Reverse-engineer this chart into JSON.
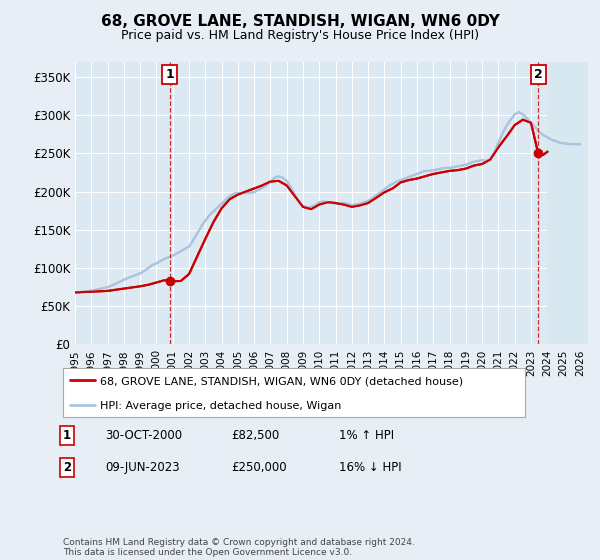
{
  "title": "68, GROVE LANE, STANDISH, WIGAN, WN6 0DY",
  "subtitle": "Price paid vs. HM Land Registry's House Price Index (HPI)",
  "ylim": [
    0,
    370000
  ],
  "xlim_start": 1995.0,
  "xlim_end": 2026.0,
  "fig_bg_color": "#e8eef5",
  "plot_bg_color": "#dce8f2",
  "grid_color": "#ffffff",
  "legend_label_red": "68, GROVE LANE, STANDISH, WIGAN, WN6 0DY (detached house)",
  "legend_label_blue": "HPI: Average price, detached house, Wigan",
  "point1_date": "30-OCT-2000",
  "point1_price": "£82,500",
  "point1_hpi": "1% ↑ HPI",
  "point1_x": 2000.83,
  "point1_y": 82500,
  "point2_date": "09-JUN-2023",
  "point2_price": "£250,000",
  "point2_hpi": "16% ↓ HPI",
  "point2_x": 2023.44,
  "point2_y": 250000,
  "footer": "Contains HM Land Registry data © Crown copyright and database right 2024.\nThis data is licensed under the Open Government Licence v3.0.",
  "hpi_color": "#aac4e0",
  "price_color": "#cc0000",
  "point_color": "#cc0000",
  "hpi_data_x": [
    1995.0,
    1995.25,
    1995.5,
    1995.75,
    1996.0,
    1996.25,
    1996.5,
    1996.75,
    1997.0,
    1997.25,
    1997.5,
    1997.75,
    1998.0,
    1998.25,
    1998.5,
    1998.75,
    1999.0,
    1999.25,
    1999.5,
    1999.75,
    2000.0,
    2000.25,
    2000.5,
    2000.75,
    2001.0,
    2001.25,
    2001.5,
    2001.75,
    2002.0,
    2002.25,
    2002.5,
    2002.75,
    2003.0,
    2003.25,
    2003.5,
    2003.75,
    2004.0,
    2004.25,
    2004.5,
    2004.75,
    2005.0,
    2005.25,
    2005.5,
    2005.75,
    2006.0,
    2006.25,
    2006.5,
    2006.75,
    2007.0,
    2007.25,
    2007.5,
    2007.75,
    2008.0,
    2008.25,
    2008.5,
    2008.75,
    2009.0,
    2009.25,
    2009.5,
    2009.75,
    2010.0,
    2010.25,
    2010.5,
    2010.75,
    2011.0,
    2011.25,
    2011.5,
    2011.75,
    2012.0,
    2012.25,
    2012.5,
    2012.75,
    2013.0,
    2013.25,
    2013.5,
    2013.75,
    2014.0,
    2014.25,
    2014.5,
    2014.75,
    2015.0,
    2015.25,
    2015.5,
    2015.75,
    2016.0,
    2016.25,
    2016.5,
    2016.75,
    2017.0,
    2017.25,
    2017.5,
    2017.75,
    2018.0,
    2018.25,
    2018.5,
    2018.75,
    2019.0,
    2019.25,
    2019.5,
    2019.75,
    2020.0,
    2020.25,
    2020.5,
    2020.75,
    2021.0,
    2021.25,
    2021.5,
    2021.75,
    2022.0,
    2022.25,
    2022.5,
    2022.75,
    2023.0,
    2023.25,
    2023.5,
    2023.75,
    2024.0,
    2024.25,
    2024.5,
    2024.75,
    2025.0,
    2025.5,
    2026.0
  ],
  "hpi_data_y": [
    68000,
    68500,
    69000,
    69500,
    70500,
    71500,
    72500,
    73500,
    75000,
    77000,
    79500,
    82000,
    84500,
    87000,
    89000,
    91000,
    93000,
    96000,
    100000,
    104000,
    106000,
    109000,
    112000,
    114000,
    116000,
    119000,
    122000,
    125000,
    128000,
    136000,
    145000,
    154000,
    162000,
    169000,
    174000,
    179000,
    184000,
    189000,
    194000,
    197000,
    198000,
    198000,
    198000,
    198500,
    199000,
    202000,
    205000,
    208000,
    213000,
    218000,
    220000,
    218000,
    214000,
    206000,
    196000,
    186000,
    181000,
    179000,
    180000,
    182000,
    186000,
    187000,
    186000,
    185000,
    184000,
    185000,
    185000,
    184000,
    182000,
    183000,
    184000,
    186000,
    188000,
    191000,
    195000,
    199000,
    203000,
    207000,
    210000,
    213000,
    215000,
    217000,
    219000,
    221000,
    223000,
    225000,
    227000,
    227000,
    228000,
    229000,
    230000,
    231000,
    231000,
    232000,
    233000,
    234000,
    235000,
    237000,
    239000,
    240000,
    241000,
    240000,
    242000,
    251000,
    264000,
    276000,
    286000,
    294000,
    301000,
    304000,
    301000,
    296000,
    290000,
    284000,
    278000,
    274000,
    271000,
    268000,
    266000,
    264000,
    263000,
    262000,
    262000
  ],
  "price_data_x": [
    1995.0,
    1995.5,
    1996.0,
    1996.5,
    1997.0,
    1997.5,
    1998.0,
    1998.5,
    1999.0,
    1999.5,
    2000.0,
    2000.5,
    2000.83,
    2001.5,
    2002.0,
    2002.5,
    2003.0,
    2003.5,
    2004.0,
    2004.5,
    2005.0,
    2005.5,
    2006.0,
    2006.5,
    2007.0,
    2007.5,
    2008.0,
    2008.5,
    2009.0,
    2009.5,
    2010.0,
    2010.5,
    2011.0,
    2011.5,
    2012.0,
    2012.5,
    2013.0,
    2013.5,
    2014.0,
    2014.5,
    2015.0,
    2015.5,
    2016.0,
    2016.5,
    2017.0,
    2017.5,
    2018.0,
    2018.5,
    2019.0,
    2019.5,
    2020.0,
    2020.5,
    2021.0,
    2021.5,
    2022.0,
    2022.5,
    2023.0,
    2023.44,
    2023.75,
    2024.0
  ],
  "price_data_y": [
    68000,
    68500,
    69000,
    69500,
    70000,
    71500,
    73000,
    74500,
    76000,
    78000,
    81000,
    84000,
    82500,
    83000,
    92000,
    115000,
    138000,
    160000,
    178000,
    190000,
    196000,
    200000,
    204000,
    208000,
    213000,
    214000,
    208000,
    194000,
    180000,
    177000,
    183000,
    186000,
    185000,
    183000,
    180000,
    182000,
    185000,
    192000,
    199000,
    204000,
    212000,
    215000,
    217000,
    220000,
    223000,
    225000,
    227000,
    228000,
    230000,
    234000,
    236000,
    242000,
    258000,
    272000,
    287000,
    294000,
    290000,
    250000,
    248000,
    252000
  ]
}
